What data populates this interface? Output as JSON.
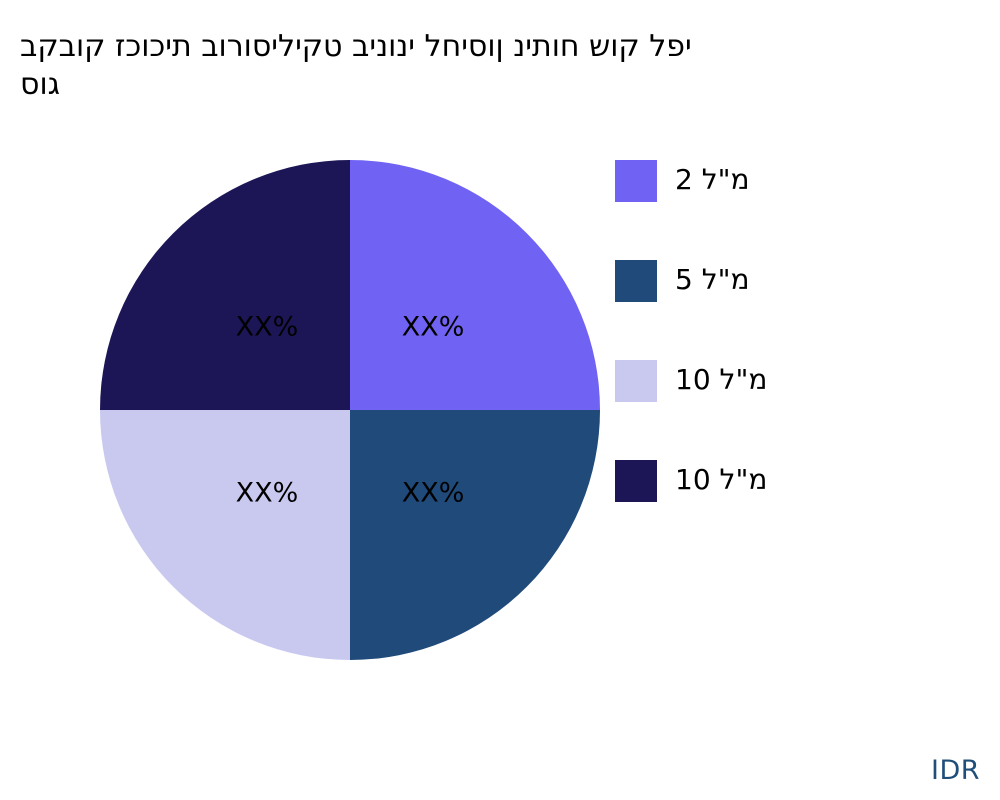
{
  "chart_data": {
    "type": "pie",
    "title_lines": [
      "יפל קוש חותינ ןוסיחל ינוניב טקיליסורוב תיכוכז קובקב",
      "גוס"
    ],
    "categories": [
      "2 מ\"ל",
      "5 מ\"ל",
      "10 מ\"ל",
      "10 מ\"ל"
    ],
    "values": [
      25,
      25,
      25,
      25
    ],
    "slice_labels": [
      "XX%",
      "XX%",
      "XX%",
      "XX%"
    ],
    "colors": [
      "#7063f3",
      "#1f4a7a",
      "#c9c9f0",
      "#1c1656"
    ],
    "start_angle_deg": 90,
    "direction": "clockwise",
    "legend_position": "right"
  },
  "brand": "IDR"
}
